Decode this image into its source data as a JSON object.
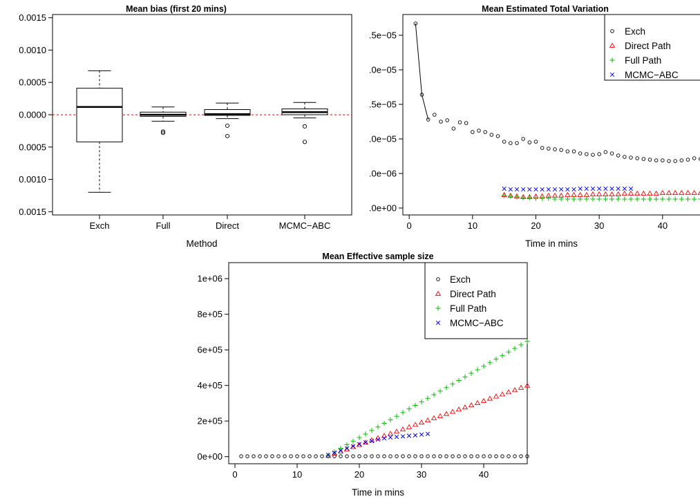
{
  "chart_data": [
    {
      "type": "box",
      "title": "Mean bias (first 20 mins)",
      "xlabel": "Method",
      "ylabel": "",
      "categories": [
        "Exch",
        "Full",
        "Direct",
        "MCMC−ABC"
      ],
      "ylim": [
        -0.00155,
        0.00155
      ],
      "yticks": [
        0.0015,
        0.001,
        0.0005,
        0.0,
        -0.0005,
        -0.001,
        -0.0015
      ],
      "ytick_labels": [
        "0.0015",
        "0.0010",
        "0.0005",
        "0.0000",
        "0.0005",
        "0.0010",
        "0.0015"
      ],
      "reference_line": {
        "y": 0.0,
        "color": "#ff0000",
        "style": "dashed"
      },
      "boxes": [
        {
          "name": "Exch",
          "whisker_low": -0.0012,
          "q1": -0.00042,
          "median": 0.00012,
          "q3": 0.00041,
          "whisker_high": 0.00068,
          "outliers": []
        },
        {
          "name": "Full",
          "whisker_low": -0.0001,
          "q1": -2.5e-05,
          "median": 0.0,
          "q3": 4e-05,
          "whisker_high": 0.00012,
          "outliers": [
            -0.00026,
            -0.00028
          ]
        },
        {
          "name": "Direct",
          "whisker_low": -6e-05,
          "q1": -1e-05,
          "median": 1e-05,
          "q3": 8e-05,
          "whisker_high": 0.00018,
          "outliers": [
            -0.00017,
            -0.00033
          ]
        },
        {
          "name": "MCMC−ABC",
          "whisker_low": -5e-05,
          "q1": 0.0,
          "median": 4e-05,
          "q3": 9e-05,
          "whisker_high": 0.00019,
          "outliers": [
            -0.00018,
            -0.00042
          ]
        }
      ]
    },
    {
      "type": "scatter",
      "title": "Mean Estimated Total Variation",
      "xlabel": "Time in mins",
      "ylabel": "",
      "xlim": [
        -1,
        47
      ],
      "ylim": [
        -1e-06,
        2.8e-05
      ],
      "xticks": [
        0,
        10,
        20,
        30,
        40
      ],
      "yticks": [
        0,
        5e-06,
        1e-05,
        1.5e-05,
        2e-05,
        2.5e-05
      ],
      "ytick_labels": [
        ".0e+00",
        ".0e−06",
        ".0e−05",
        ".5e−05",
        ".0e−05",
        ".5e−05"
      ],
      "legend_position": "top-right",
      "series": [
        {
          "name": "Exch",
          "marker": "circle",
          "color": "#000000",
          "connect_first": 3,
          "x": [
            1,
            2,
            3,
            4,
            5,
            6,
            7,
            8,
            9,
            10,
            11,
            12,
            13,
            14,
            15,
            16,
            17,
            18,
            19,
            20,
            21,
            22,
            23,
            24,
            25,
            26,
            27,
            28,
            29,
            30,
            31,
            32,
            33,
            34,
            35,
            36,
            37,
            38,
            39,
            40,
            41,
            42,
            43,
            44,
            45,
            46,
            47
          ],
          "y": [
            2.67e-05,
            1.64e-05,
            1.28e-05,
            1.35e-05,
            1.25e-05,
            1.27e-05,
            1.15e-05,
            1.24e-05,
            1.23e-05,
            1.1e-05,
            1.12e-05,
            1.1e-05,
            1.06e-05,
            1.04e-05,
            9.6e-06,
            9.4e-06,
            9.4e-06,
            1e-05,
            9.5e-06,
            9.6e-06,
            8.7e-06,
            8.6e-06,
            8.5e-06,
            8.4e-06,
            8.2e-06,
            8.2e-06,
            7.9e-06,
            7.8e-06,
            7.7e-06,
            7.8e-06,
            8.1e-06,
            7.9e-06,
            7.6e-06,
            7.4e-06,
            7.3e-06,
            7.2e-06,
            7.1e-06,
            7e-06,
            6.9e-06,
            6.9e-06,
            6.8e-06,
            6.8e-06,
            6.9e-06,
            7e-06,
            7.2e-06,
            7.1e-06,
            6.9e-06
          ]
        },
        {
          "name": "Direct Path",
          "marker": "triangle",
          "color": "#ff0000",
          "x": [
            15,
            16,
            17,
            18,
            19,
            20,
            21,
            22,
            23,
            24,
            25,
            26,
            27,
            28,
            29,
            30,
            31,
            32,
            33,
            34,
            35,
            36,
            37,
            38,
            39,
            40,
            41,
            42,
            43,
            44,
            45,
            46,
            47
          ],
          "y": [
            1.9e-06,
            1.8e-06,
            1.7e-06,
            1.6e-06,
            1.6e-06,
            1.7e-06,
            1.7e-06,
            1.8e-06,
            1.8e-06,
            1.8e-06,
            1.9e-06,
            1.9e-06,
            1.9e-06,
            1.9e-06,
            2e-06,
            2e-06,
            2e-06,
            2e-06,
            2e-06,
            2.1e-06,
            2.1e-06,
            2.1e-06,
            2.1e-06,
            2.1e-06,
            2.1e-06,
            2.2e-06,
            2.2e-06,
            2.2e-06,
            2.2e-06,
            2.2e-06,
            2.2e-06,
            2.2e-06,
            2.2e-06
          ]
        },
        {
          "name": "Full Path",
          "marker": "plus",
          "color": "#00c000",
          "x": [
            15,
            16,
            17,
            18,
            19,
            20,
            21,
            22,
            23,
            24,
            25,
            26,
            27,
            28,
            29,
            30,
            31,
            32,
            33,
            34,
            35,
            36,
            37,
            38,
            39,
            40,
            41,
            42,
            43,
            44,
            45,
            46,
            47
          ],
          "y": [
            1.8e-06,
            1.7e-06,
            1.6e-06,
            1.5e-06,
            1.5e-06,
            1.4e-06,
            1.4e-06,
            1.4e-06,
            1.3e-06,
            1.3e-06,
            1.3e-06,
            1.3e-06,
            1.3e-06,
            1.3e-06,
            1.3e-06,
            1.3e-06,
            1.3e-06,
            1.3e-06,
            1.3e-06,
            1.3e-06,
            1.3e-06,
            1.3e-06,
            1.3e-06,
            1.3e-06,
            1.3e-06,
            1.3e-06,
            1.3e-06,
            1.3e-06,
            1.3e-06,
            1.3e-06,
            1.3e-06,
            1.3e-06,
            1.3e-06
          ]
        },
        {
          "name": "MCMC−ABC",
          "marker": "x",
          "color": "#0000ff",
          "x": [
            15,
            16,
            17,
            18,
            19,
            20,
            21,
            22,
            23,
            24,
            25,
            26,
            27,
            28,
            29,
            30,
            31,
            32,
            33,
            34,
            35
          ],
          "y": [
            2.8e-06,
            2.7e-06,
            2.7e-06,
            2.7e-06,
            2.7e-06,
            2.7e-06,
            2.7e-06,
            2.7e-06,
            2.7e-06,
            2.7e-06,
            2.7e-06,
            2.7e-06,
            2.8e-06,
            2.8e-06,
            2.8e-06,
            2.8e-06,
            2.8e-06,
            2.8e-06,
            2.8e-06,
            2.8e-06,
            2.8e-06
          ]
        }
      ]
    },
    {
      "type": "scatter",
      "title": "Mean Effective sample size",
      "xlabel": "Time in mins",
      "ylabel": "",
      "xlim": [
        -1,
        47
      ],
      "ylim": [
        -40000,
        1090000
      ],
      "xticks": [
        0,
        10,
        20,
        30,
        40
      ],
      "yticks": [
        0,
        200000,
        400000,
        600000,
        800000,
        1000000
      ],
      "ytick_labels": [
        "0e+00",
        "2e+05",
        "4e+05",
        "6e+05",
        "8e+05",
        "1e+06"
      ],
      "legend_position": "top-right",
      "series": [
        {
          "name": "Exch",
          "marker": "circle",
          "color": "#000000",
          "x": [
            1,
            2,
            3,
            4,
            5,
            6,
            7,
            8,
            9,
            10,
            11,
            12,
            13,
            14,
            15,
            16,
            17,
            18,
            19,
            20,
            21,
            22,
            23,
            24,
            25,
            26,
            27,
            28,
            29,
            30,
            31,
            32,
            33,
            34,
            35,
            36,
            37,
            38,
            39,
            40,
            41,
            42,
            43,
            44,
            45,
            46,
            47
          ],
          "y": [
            2000,
            2000,
            2000,
            2000,
            2000,
            2000,
            2000,
            2000,
            2000,
            2000,
            2000,
            2000,
            2000,
            2000,
            2000,
            2000,
            2000,
            2000,
            2000,
            2000,
            2000,
            2000,
            2000,
            2000,
            2000,
            2000,
            2000,
            2000,
            2000,
            2000,
            2000,
            2000,
            2000,
            2000,
            2000,
            2000,
            2000,
            2000,
            2000,
            2000,
            2000,
            2000,
            2000,
            2000,
            2000,
            2000,
            2000
          ]
        },
        {
          "name": "Direct Path",
          "marker": "triangle",
          "color": "#ff0000",
          "x": [
            15,
            16,
            17,
            18,
            19,
            20,
            21,
            22,
            23,
            24,
            25,
            26,
            27,
            28,
            29,
            30,
            31,
            32,
            33,
            34,
            35,
            36,
            37,
            38,
            39,
            40,
            41,
            42,
            43,
            44,
            45,
            46,
            47
          ],
          "y": [
            5000,
            17000,
            29000,
            41000,
            54000,
            66000,
            79000,
            92000,
            104000,
            117000,
            129000,
            141000,
            153000,
            166000,
            179000,
            192000,
            204000,
            216000,
            228000,
            240000,
            252000,
            265000,
            277000,
            289000,
            301000,
            313000,
            326000,
            338000,
            350000,
            362000,
            374000,
            387000,
            399000
          ]
        },
        {
          "name": "Full Path",
          "marker": "plus",
          "color": "#00c000",
          "x": [
            15,
            16,
            17,
            18,
            19,
            20,
            21,
            22,
            23,
            24,
            25,
            26,
            27,
            28,
            29,
            30,
            31,
            32,
            33,
            34,
            35,
            36,
            37,
            38,
            39,
            40,
            41,
            42,
            43,
            44,
            45,
            46,
            47
          ],
          "y": [
            7000,
            27000,
            47000,
            67000,
            87000,
            107000,
            127000,
            147000,
            167000,
            187000,
            207000,
            227000,
            248000,
            268000,
            288000,
            308000,
            328000,
            348000,
            368000,
            388000,
            408000,
            428000,
            448000,
            468000,
            488000,
            508000,
            528000,
            548000,
            568000,
            588000,
            608000,
            628000,
            648000
          ]
        },
        {
          "name": "MCMC−ABC",
          "marker": "x",
          "color": "#0000ff",
          "x": [
            15,
            16,
            17,
            18,
            19,
            20,
            21,
            22,
            23,
            24,
            25,
            26,
            27,
            28,
            29,
            30,
            31
          ],
          "y": [
            10000,
            22000,
            34000,
            46000,
            58000,
            70000,
            80000,
            88000,
            96000,
            103000,
            108000,
            111000,
            114000,
            117000,
            120000,
            124000,
            128000
          ]
        }
      ]
    }
  ]
}
